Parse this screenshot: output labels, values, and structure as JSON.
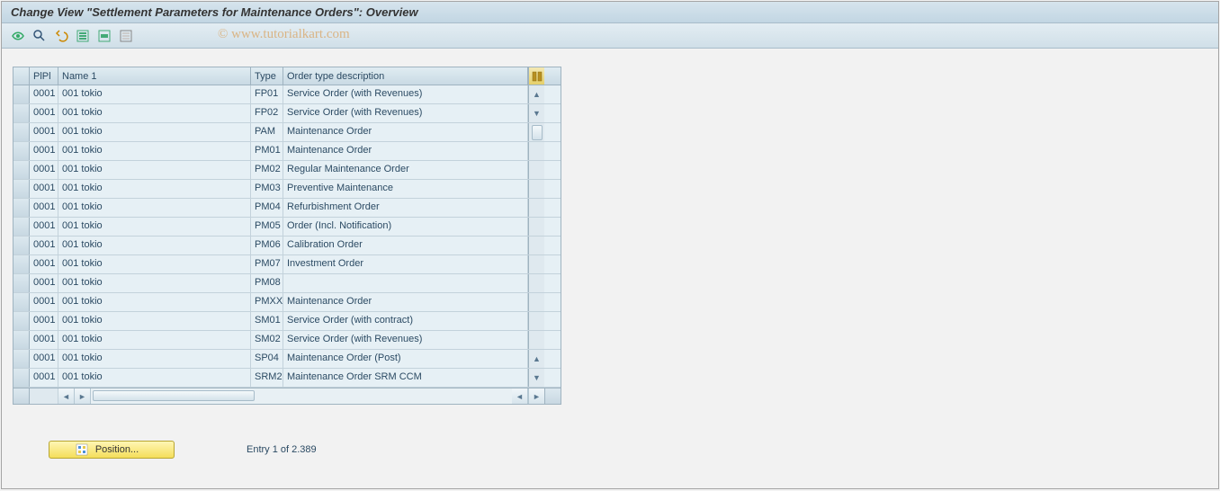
{
  "title": "Change View \"Settlement Parameters for Maintenance Orders\": Overview",
  "watermark": "© www.tutorialkart.com",
  "toolbar": {
    "icons": [
      "other-view",
      "find",
      "undo",
      "select-all",
      "select-block",
      "deselect-all"
    ]
  },
  "columns": {
    "pipi": "PlPl",
    "name": "Name 1",
    "type": "Type",
    "desc": "Order type description"
  },
  "rows": [
    {
      "p": "0001",
      "name": "001 tokio",
      "type": "FP01",
      "desc": "Service Order (with Revenues)"
    },
    {
      "p": "0001",
      "name": "001 tokio",
      "type": "FP02",
      "desc": "Service Order (with Revenues)"
    },
    {
      "p": "0001",
      "name": "001 tokio",
      "type": "PAM",
      "desc": "Maintenance Order"
    },
    {
      "p": "0001",
      "name": "001 tokio",
      "type": "PM01",
      "desc": "Maintenance Order"
    },
    {
      "p": "0001",
      "name": "001 tokio",
      "type": "PM02",
      "desc": "Regular Maintenance Order"
    },
    {
      "p": "0001",
      "name": "001 tokio",
      "type": "PM03",
      "desc": "Preventive Maintenance"
    },
    {
      "p": "0001",
      "name": "001 tokio",
      "type": "PM04",
      "desc": "Refurbishment Order"
    },
    {
      "p": "0001",
      "name": "001 tokio",
      "type": "PM05",
      "desc": "Order (Incl. Notification)"
    },
    {
      "p": "0001",
      "name": "001 tokio",
      "type": "PM06",
      "desc": "Calibration Order"
    },
    {
      "p": "0001",
      "name": "001 tokio",
      "type": "PM07",
      "desc": "Investment Order"
    },
    {
      "p": "0001",
      "name": "001 tokio",
      "type": "PM08",
      "desc": ""
    },
    {
      "p": "0001",
      "name": "001 tokio",
      "type": "PMXX",
      "desc": "Maintenance Order"
    },
    {
      "p": "0001",
      "name": "001 tokio",
      "type": "SM01",
      "desc": "Service Order (with contract)"
    },
    {
      "p": "0001",
      "name": "001 tokio",
      "type": "SM02",
      "desc": "Service Order (with Revenues)"
    },
    {
      "p": "0001",
      "name": "001 tokio",
      "type": "SP04",
      "desc": "Maintenance Order (Post)"
    },
    {
      "p": "0001",
      "name": "001 tokio",
      "type": "SRM2",
      "desc": "Maintenance Order SRM CCM"
    }
  ],
  "footer": {
    "position_label": "Position...",
    "entry_text": "Entry 1 of 2.389"
  },
  "colors": {
    "title_bg_top": "#d6e4ed",
    "title_bg_bot": "#c2d6e3",
    "row_bg": "#e6f0f5",
    "border": "#9fb3c0",
    "text": "#2b4a63",
    "yellow_btn_top": "#fff6b5",
    "yellow_btn_bot": "#f4de5a"
  }
}
